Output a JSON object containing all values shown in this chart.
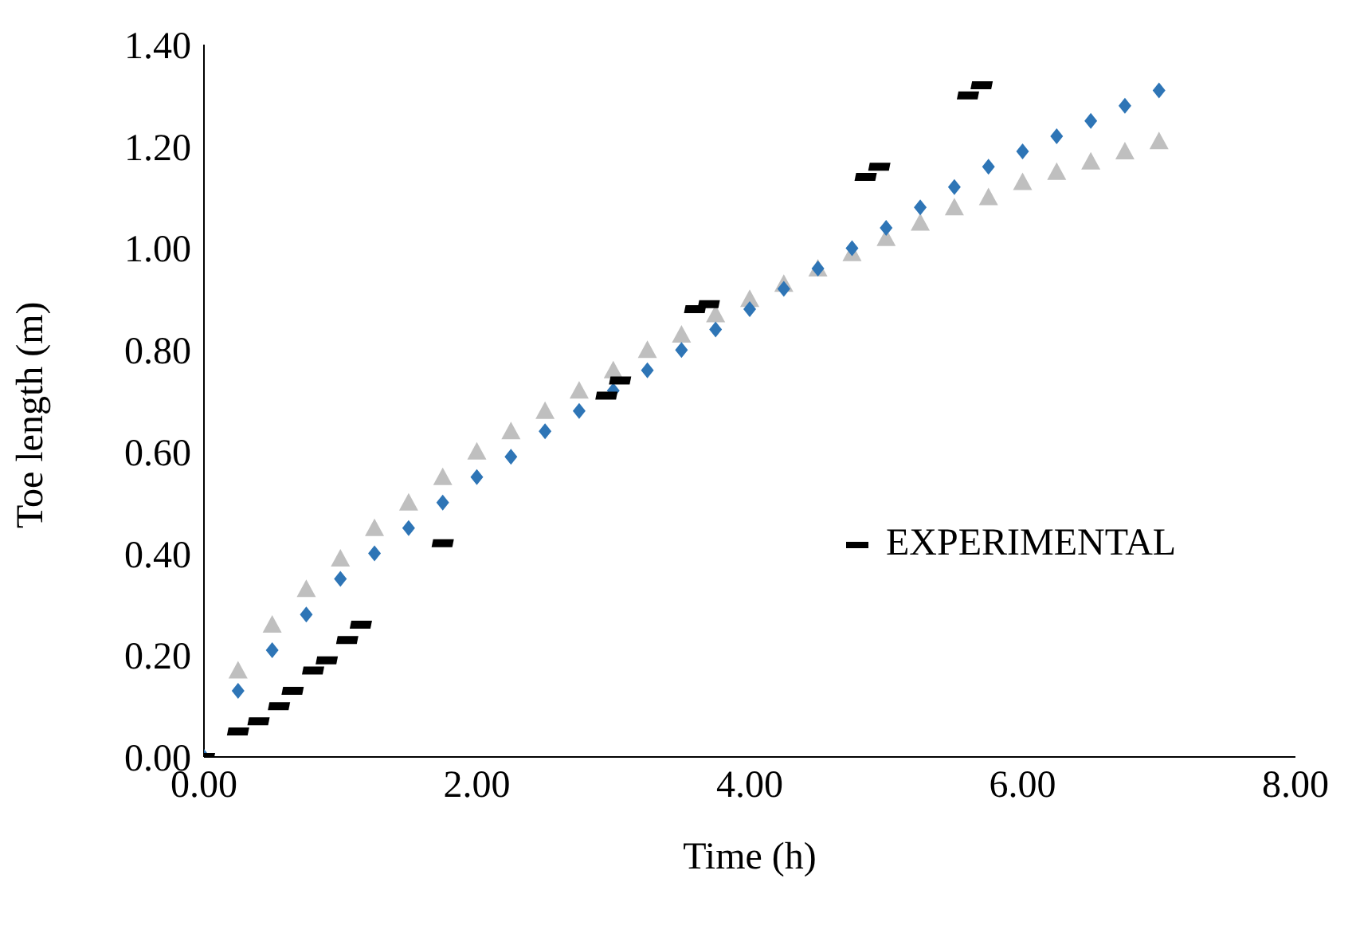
{
  "chart_data": {
    "type": "scatter",
    "xlabel": "Time (h)",
    "ylabel": "Toe length (m)",
    "xlim": [
      0,
      8
    ],
    "xticks": [
      {
        "value": 0,
        "label": "0.00"
      },
      {
        "value": 2,
        "label": "2.00"
      },
      {
        "value": 4,
        "label": "4.00"
      },
      {
        "value": 6,
        "label": "6.00"
      },
      {
        "value": 8,
        "label": "8.00"
      }
    ],
    "ylim": [
      0,
      1.4
    ],
    "yticks": [
      {
        "value": 0,
        "label": "0.00"
      },
      {
        "value": 0.2,
        "label": "0.20"
      },
      {
        "value": 0.4,
        "label": "0.40"
      },
      {
        "value": 0.6,
        "label": "0.60"
      },
      {
        "value": 0.8,
        "label": "0.80"
      },
      {
        "value": 1,
        "label": "1.00"
      },
      {
        "value": 1.2,
        "label": "1.20"
      },
      {
        "value": 1.4,
        "label": "1.40"
      }
    ],
    "grid": false,
    "legend": "right",
    "series": [
      {
        "name": "EXPERIMENTAL",
        "color": "#000000",
        "x": [
          0,
          0.25,
          0.4,
          0.55,
          0.65,
          0.8,
          0.9,
          1.05,
          1.15,
          1.75,
          2.95,
          3.05,
          3.6,
          3.7,
          4.85,
          4.95,
          5.6,
          5.7
        ],
        "values": [
          0,
          0.05,
          0.07,
          0.1,
          0.13,
          0.17,
          0.19,
          0.23,
          0.26,
          0.42,
          0.71,
          0.74,
          0.88,
          0.89,
          1.14,
          1.16,
          1.3,
          1.32
        ]
      },
      {
        "color": "#2e75b6",
        "marker": "diamond",
        "x": [
          0,
          0.25,
          0.5,
          0.75,
          1,
          1.25,
          1.5,
          1.75,
          2,
          2.25,
          2.5,
          2.75,
          3,
          3.25,
          3.5,
          3.75,
          4,
          4.25,
          4.5,
          4.75,
          5,
          5.25,
          5.5,
          5.75,
          6,
          6.25,
          6.5,
          6.75,
          7
        ],
        "values": [
          0,
          0.13,
          0.21,
          0.28,
          0.35,
          0.4,
          0.45,
          0.5,
          0.55,
          0.59,
          0.64,
          0.68,
          0.72,
          0.76,
          0.8,
          0.84,
          0.88,
          0.92,
          0.96,
          1,
          1.04,
          1.08,
          1.12,
          1.16,
          1.19,
          1.22,
          1.25,
          1.28,
          1.31
        ]
      },
      {
        "color": "#bfbfbf",
        "marker": "triangle",
        "x": [
          0.25,
          0.5,
          0.75,
          1,
          1.25,
          1.5,
          1.75,
          2,
          2.25,
          2.5,
          2.75,
          3,
          3.25,
          3.5,
          3.75,
          4,
          4.25,
          4.5,
          4.75,
          5,
          5.25,
          5.5,
          5.75,
          6,
          6.25,
          6.5,
          6.75,
          7
        ],
        "values": [
          0.17,
          0.26,
          0.33,
          0.39,
          0.45,
          0.5,
          0.55,
          0.6,
          0.64,
          0.68,
          0.72,
          0.76,
          0.8,
          0.83,
          0.87,
          0.9,
          0.93,
          0.96,
          0.99,
          1.02,
          1.05,
          1.08,
          1.1,
          1.13,
          1.15,
          1.17,
          1.19,
          1.21
        ]
      }
    ]
  }
}
